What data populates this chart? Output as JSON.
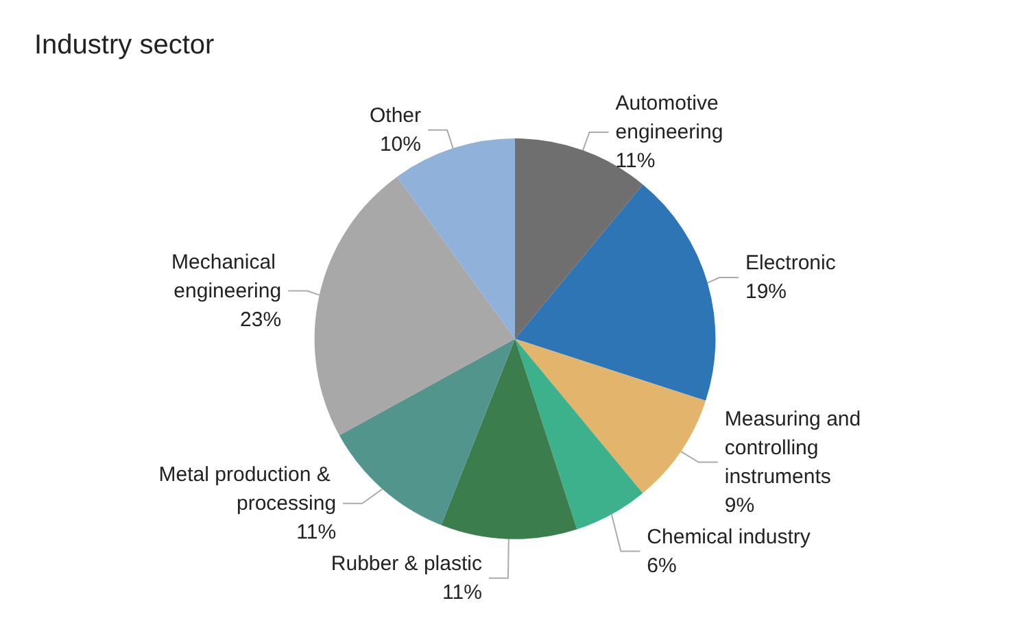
{
  "chart_data": {
    "type": "pie",
    "title": "Industry sector",
    "categories": [
      "Automotive engineering",
      "Electronic",
      "Measuring and controlling instruments",
      "Chemical industry",
      "Rubber & plastic",
      "Metal production & processing",
      "Mechanical engineering",
      "Other"
    ],
    "values": [
      11,
      19,
      9,
      6,
      11,
      11,
      23,
      10
    ],
    "colors": [
      "#6f6f6f",
      "#2e75b6",
      "#e3b46c",
      "#3db08c",
      "#3b7d4c",
      "#51958c",
      "#a8a8a8",
      "#90b1da"
    ],
    "value_labels": [
      "11%",
      "19%",
      "9%",
      "6%",
      "11%",
      "11%",
      "23%",
      "10%"
    ],
    "legend": false
  }
}
